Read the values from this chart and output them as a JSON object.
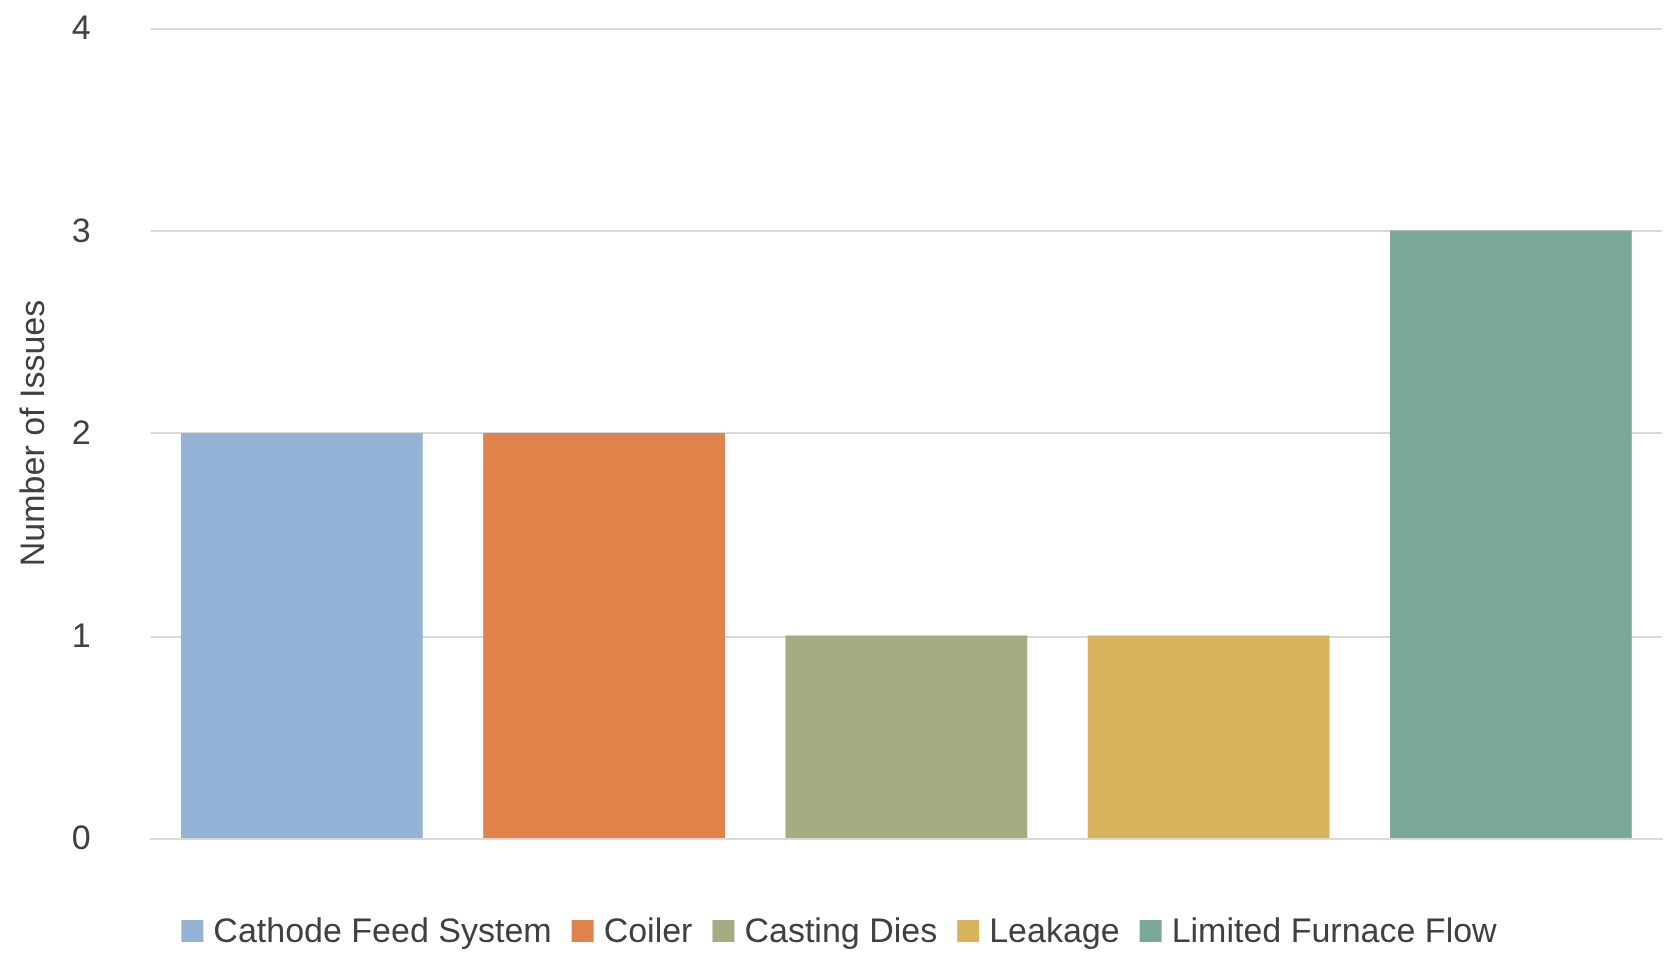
{
  "chart_data": {
    "type": "bar",
    "ylabel": "Number of Issues",
    "categories": [
      null,
      null,
      null,
      null,
      null
    ],
    "series": [
      {
        "name": "Cathode Feed System",
        "color": "#95b3d7",
        "values": [
          2,
          null,
          null,
          null,
          null
        ]
      },
      {
        "name": "Coiler",
        "color": "#e0834a",
        "values": [
          null,
          2,
          null,
          null,
          null
        ]
      },
      {
        "name": "Casting Dies",
        "color": "#a4ac82",
        "values": [
          null,
          null,
          1,
          null,
          null
        ]
      },
      {
        "name": "Leakage",
        "color": "#d9b25e",
        "values": [
          null,
          null,
          null,
          1,
          null
        ]
      },
      {
        "name": "Limited Furnace Flow",
        "color": "#7ba89b",
        "values": [
          null,
          null,
          null,
          null,
          3
        ]
      }
    ],
    "ylim": [
      0,
      4
    ],
    "yticks": [
      0,
      1,
      2,
      3,
      4
    ],
    "grid": "y",
    "legend": "bottom"
  }
}
